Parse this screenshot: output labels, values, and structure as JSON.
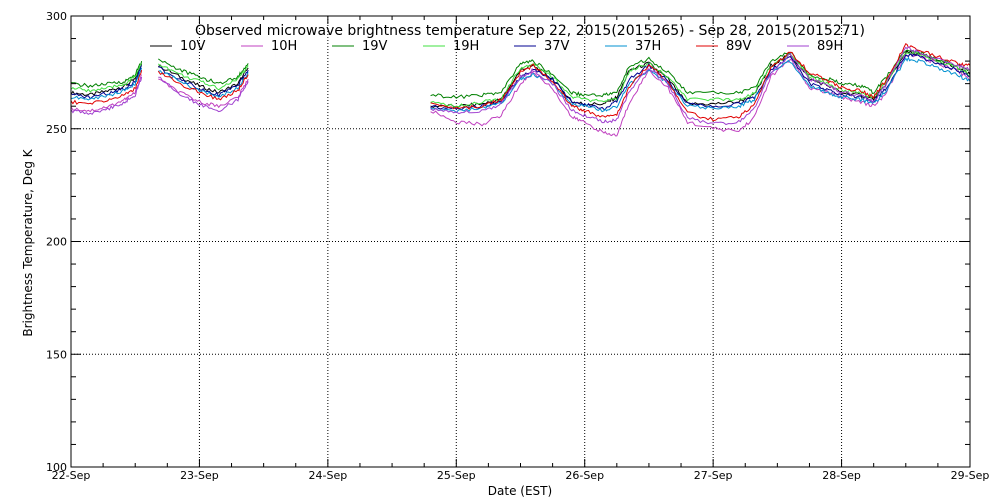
{
  "chart_data": {
    "type": "line",
    "title": "Observed microwave brightness temperature Sep 22, 2015(2015265) - Sep 28, 2015(2015271)",
    "xlabel": "Date (EST)",
    "ylabel": "Brightness Temperature, Deg K",
    "xlim": [
      0,
      7
    ],
    "ylim": [
      100,
      300
    ],
    "x_ticks": [
      0,
      1,
      2,
      3,
      4,
      5,
      6,
      7
    ],
    "x_tick_labels": [
      "22-Sep",
      "23-Sep",
      "24-Sep",
      "25-Sep",
      "26-Sep",
      "27-Sep",
      "28-Sep",
      "29-Sep"
    ],
    "y_ticks": [
      100,
      150,
      200,
      250,
      300
    ],
    "y_tick_labels": [
      "100",
      "150",
      "200",
      "250",
      "300"
    ],
    "grid": true,
    "legend_position": "top",
    "series": [
      {
        "name": "10V",
        "color": "#000000",
        "offset": 0
      },
      {
        "name": "10H",
        "color": "#c040c0",
        "offset": 0
      },
      {
        "name": "19V",
        "color": "#008000",
        "offset": 0
      },
      {
        "name": "19H",
        "color": "#40e040",
        "offset": 0
      },
      {
        "name": "37V",
        "color": "#000090",
        "offset": 0
      },
      {
        "name": "37H",
        "color": "#0090d0",
        "offset": 0
      },
      {
        "name": "89V",
        "color": "#e00000",
        "offset": 0
      },
      {
        "name": "89H",
        "color": "#a040d0",
        "offset": 0
      }
    ],
    "segments": [
      {
        "x": [
          0.0,
          0.15,
          0.3,
          0.42,
          0.5,
          0.55
        ],
        "values": {
          "10V": [
            266,
            265,
            267,
            269,
            272,
            279
          ],
          "10H": [
            259,
            258,
            260,
            263,
            266,
            274
          ],
          "19V": [
            270,
            269,
            270,
            271,
            274,
            280
          ],
          "19H": [
            268,
            267,
            268,
            270,
            273,
            279
          ],
          "37V": [
            265,
            264,
            266,
            268,
            271,
            278
          ],
          "37H": [
            264,
            263,
            265,
            267,
            270,
            277
          ],
          "89V": [
            262,
            261,
            263,
            265,
            268,
            276
          ],
          "89H": [
            258,
            257,
            259,
            262,
            265,
            273
          ]
        }
      },
      {
        "x": [
          0.68,
          0.85,
          1.0,
          1.15,
          1.3,
          1.38
        ],
        "values": {
          "10V": [
            278,
            273,
            269,
            266,
            270,
            277
          ],
          "10H": [
            272,
            266,
            262,
            260,
            264,
            272
          ],
          "19V": [
            281,
            276,
            273,
            270,
            273,
            279
          ],
          "19H": [
            279,
            274,
            271,
            268,
            272,
            278
          ],
          "37V": [
            277,
            272,
            268,
            265,
            269,
            276
          ],
          "37H": [
            276,
            271,
            267,
            264,
            268,
            275
          ],
          "89V": [
            275,
            270,
            266,
            263,
            267,
            274
          ],
          "89H": [
            273,
            265,
            261,
            258,
            263,
            271
          ]
        }
      },
      {
        "x": [
          2.8,
          3.0,
          3.2,
          3.35,
          3.5,
          3.6,
          3.75,
          3.9,
          4.0,
          4.15,
          4.25,
          4.35,
          4.5,
          4.65,
          4.8,
          5.0,
          5.2,
          5.32,
          5.45,
          5.6,
          5.75,
          5.9,
          6.0,
          6.15,
          6.25,
          6.35,
          6.5,
          6.6,
          6.75,
          6.9,
          7.0
        ],
        "values": {
          "10V": [
            260,
            260,
            261,
            263,
            276,
            278,
            272,
            262,
            261,
            261,
            264,
            276,
            279,
            272,
            261,
            261,
            262,
            265,
            278,
            283,
            272,
            269,
            266,
            265,
            263,
            270,
            284,
            283,
            280,
            277,
            274
          ],
          "10H": [
            258,
            253,
            252,
            256,
            270,
            275,
            268,
            255,
            253,
            248,
            247,
            262,
            276,
            268,
            253,
            250,
            249,
            255,
            273,
            281,
            268,
            266,
            264,
            262,
            260,
            266,
            283,
            282,
            279,
            276,
            272
          ],
          "19V": [
            265,
            264,
            265,
            266,
            279,
            280,
            274,
            266,
            265,
            265,
            266,
            278,
            281,
            275,
            266,
            266,
            266,
            268,
            280,
            284,
            274,
            272,
            270,
            269,
            266,
            273,
            285,
            284,
            281,
            278,
            276
          ],
          "19H": [
            262,
            260,
            262,
            263,
            277,
            279,
            273,
            264,
            263,
            262,
            263,
            276,
            279,
            273,
            263,
            263,
            263,
            266,
            278,
            283,
            273,
            270,
            267,
            266,
            264,
            271,
            284,
            283,
            280,
            277,
            274
          ],
          "37V": [
            260,
            259,
            260,
            262,
            273,
            276,
            272,
            262,
            261,
            259,
            262,
            272,
            278,
            271,
            261,
            260,
            261,
            264,
            276,
            282,
            270,
            267,
            265,
            264,
            262,
            268,
            283,
            282,
            279,
            276,
            273
          ],
          "37H": [
            259,
            258,
            259,
            261,
            272,
            274,
            270,
            261,
            260,
            258,
            260,
            270,
            276,
            270,
            260,
            259,
            260,
            263,
            275,
            280,
            269,
            266,
            264,
            263,
            261,
            267,
            281,
            280,
            277,
            274,
            271
          ],
          "89V": [
            261,
            259,
            260,
            263,
            275,
            278,
            271,
            260,
            258,
            255,
            256,
            269,
            278,
            271,
            257,
            254,
            255,
            261,
            277,
            284,
            275,
            271,
            268,
            267,
            264,
            272,
            287,
            285,
            282,
            279,
            278
          ],
          "89H": [
            259,
            257,
            258,
            261,
            273,
            276,
            270,
            258,
            256,
            253,
            254,
            267,
            277,
            270,
            255,
            252,
            253,
            259,
            275,
            283,
            272,
            269,
            266,
            265,
            262,
            270,
            286,
            284,
            281,
            278,
            276
          ]
        }
      }
    ]
  }
}
